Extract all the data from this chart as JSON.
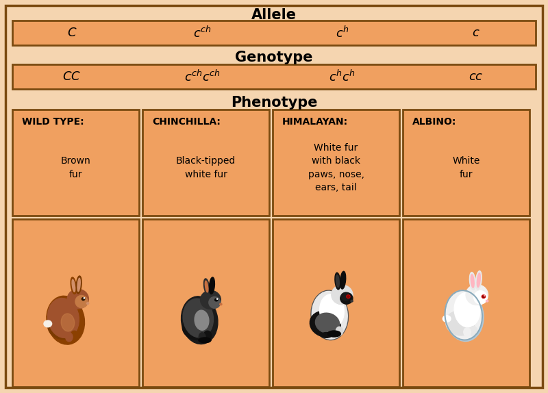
{
  "background_color": "#f5d5b0",
  "box_fill_color": "#f0a060",
  "box_edge_color": "#7a4a10",
  "outer_border_color": "#7a4a10",
  "title_color": "#000000",
  "text_color": "#000000",
  "title_allele": "Allele",
  "title_genotype": "Genotype",
  "title_phenotype": "Phenotype",
  "alleles": [
    "$C$",
    "$c^{ch}$",
    "$c^{h}$",
    "$c$"
  ],
  "genotypes": [
    "$CC$",
    "$c^{ch}c^{ch}$",
    "$c^{h}c^{h}$",
    "$cc$"
  ],
  "phenotype_titles": [
    "WILD TYPE:",
    "CHINCHILLA:",
    "HIMALAYAN:",
    "ALBINO:"
  ],
  "phenotype_bodies": [
    "Brown\nfur",
    "Black-tipped\nwhite fur",
    "White fur\nwith black\npaws, nose,\nears, tail",
    "White\nfur"
  ],
  "figsize": [
    8.0,
    5.74
  ],
  "dpi": 100
}
